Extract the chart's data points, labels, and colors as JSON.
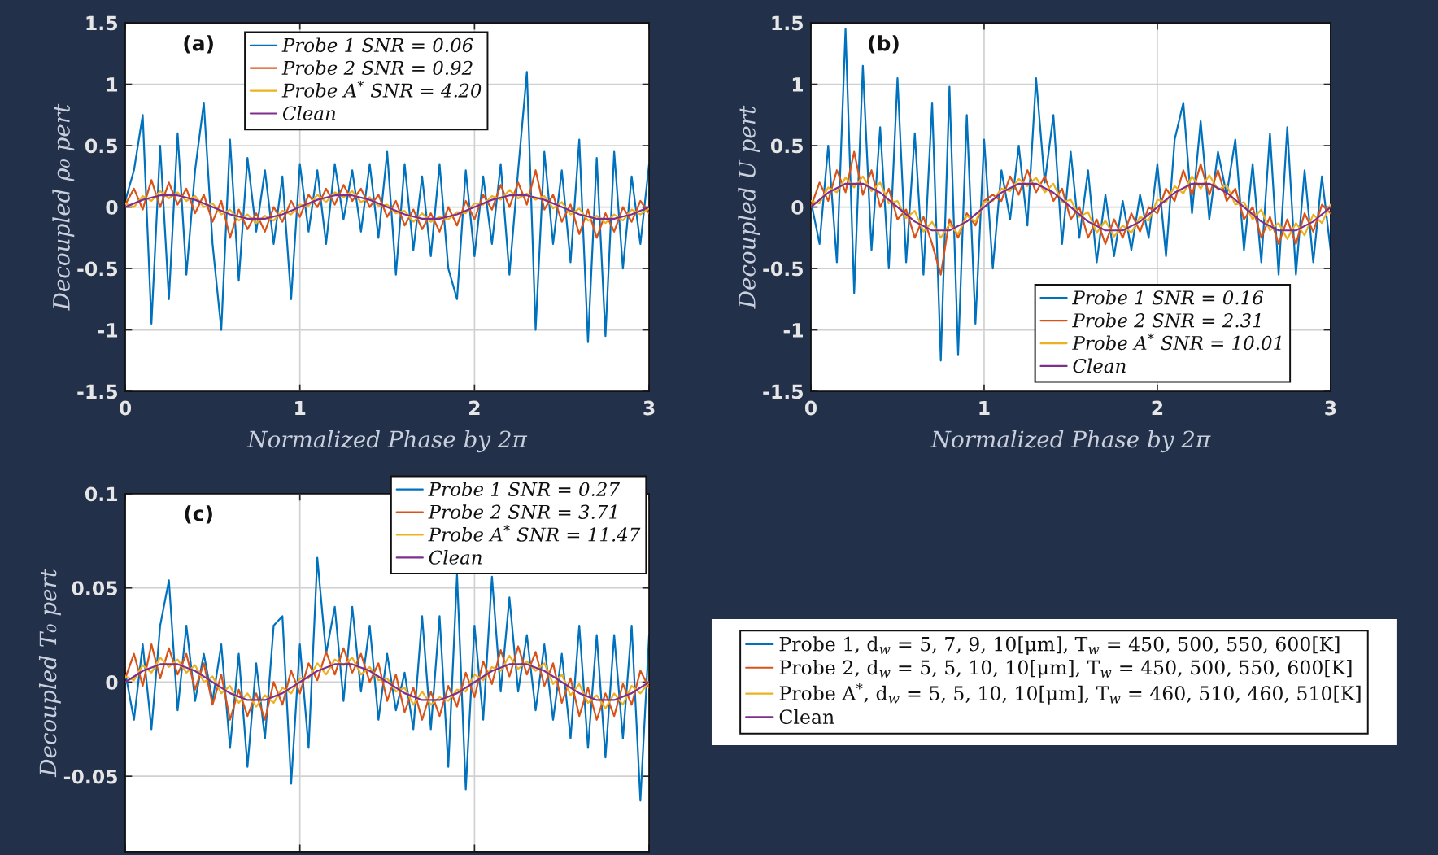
{
  "chart_data": [
    {
      "type": "line",
      "xlabel": "Normalized Phase by 2π",
      "ylabel": "Decoupled ρ₀ pert",
      "annotations": [
        "(a)"
      ],
      "x": [
        0,
        0.05,
        0.1,
        0.15,
        0.2,
        0.25,
        0.3,
        0.35,
        0.4,
        0.45,
        0.5,
        0.55,
        0.6,
        0.65,
        0.7,
        0.75,
        0.8,
        0.85,
        0.9,
        0.95,
        1,
        1.05,
        1.1,
        1.15,
        1.2,
        1.25,
        1.3,
        1.35,
        1.4,
        1.45,
        1.5,
        1.55,
        1.6,
        1.65,
        1.7,
        1.75,
        1.8,
        1.85,
        1.9,
        1.95,
        2,
        2.05,
        2.1,
        2.15,
        2.2,
        2.25,
        2.3,
        2.35,
        2.4,
        2.45,
        2.5,
        2.55,
        2.6,
        2.65,
        2.7,
        2.75,
        2.8,
        2.85,
        2.9,
        2.95,
        3
      ],
      "xlim": [
        0,
        3
      ],
      "xticks": [
        0,
        1,
        2,
        3
      ],
      "ylim": [
        -1.5,
        1.5
      ],
      "yticks": [
        -1.5,
        -1,
        -0.5,
        0,
        0.5,
        1,
        1.5
      ],
      "grid": true,
      "legend": "top",
      "series": [
        {
          "name": "Probe 1 SNR = 0.06",
          "color": "#0072bd",
          "values": [
            0.05,
            0.3,
            0.75,
            -0.95,
            0.5,
            -0.75,
            0.6,
            -0.55,
            0.3,
            0.85,
            -0.3,
            -1.0,
            0.55,
            -0.6,
            0.4,
            -0.2,
            0.3,
            -0.3,
            0.25,
            -0.75,
            0.35,
            -0.2,
            0.3,
            -0.3,
            0.35,
            -0.1,
            0.3,
            -0.2,
            0.35,
            -0.25,
            0.45,
            -0.55,
            0.35,
            -0.35,
            0.25,
            -0.4,
            0.35,
            -0.5,
            -0.75,
            0.3,
            -0.4,
            0.25,
            -0.3,
            0.35,
            -0.55,
            0.3,
            1.1,
            -1.0,
            0.45,
            -0.3,
            0.3,
            -0.45,
            0.55,
            -1.1,
            0.4,
            -1.05,
            0.45,
            -0.5,
            0.25,
            -0.3,
            0.35
          ]
        },
        {
          "name": "Probe 2 SNR = 0.92",
          "color": "#d95319",
          "values": [
            0.02,
            0.15,
            -0.02,
            0.22,
            0.0,
            0.2,
            0.02,
            0.15,
            -0.05,
            0.1,
            -0.12,
            0.05,
            -0.25,
            -0.02,
            -0.18,
            -0.05,
            -0.2,
            0.0,
            -0.12,
            0.05,
            -0.08,
            0.1,
            0.0,
            0.15,
            0.02,
            0.18,
            0.05,
            0.15,
            0.0,
            0.1,
            -0.08,
            0.05,
            -0.15,
            -0.02,
            -0.18,
            -0.05,
            -0.2,
            0.0,
            -0.15,
            0.05,
            -0.1,
            0.1,
            -0.02,
            0.18,
            0.0,
            0.2,
            0.02,
            0.3,
            -0.02,
            0.1,
            -0.12,
            0.02,
            -0.22,
            -0.02,
            -0.25,
            -0.05,
            -0.2,
            0.0,
            -0.12,
            0.05,
            -0.05
          ]
        },
        {
          "name": "Probe A$^{*}$ SNR = 4.20",
          "color": "#edb120",
          "values": [
            0.03,
            0.0,
            0.09,
            0.05,
            0.13,
            0.07,
            0.12,
            0.05,
            0.09,
            0.0,
            0.03,
            -0.06,
            -0.02,
            -0.11,
            -0.06,
            -0.13,
            -0.07,
            -0.11,
            -0.03,
            -0.06,
            0.02,
            0.01,
            0.1,
            0.04,
            0.12,
            0.08,
            0.13,
            0.04,
            0.08,
            0.01,
            0.02,
            -0.05,
            -0.03,
            -0.12,
            -0.05,
            -0.12,
            -0.08,
            -0.1,
            -0.04,
            -0.05,
            0.03,
            0.02,
            0.09,
            0.06,
            0.14,
            0.07,
            0.11,
            0.06,
            0.09,
            -0.01,
            0.04,
            -0.06,
            -0.01,
            -0.11,
            -0.07,
            -0.13,
            -0.06,
            -0.11,
            -0.02,
            -0.06,
            -0.01
          ]
        },
        {
          "name": "Clean",
          "color": "#7e2f8e",
          "x": [
            0,
            0.1,
            0.2,
            0.3,
            0.4,
            0.5,
            0.6,
            0.7,
            0.8,
            0.9,
            1,
            1.1,
            1.2,
            1.3,
            1.4,
            1.5,
            1.6,
            1.7,
            1.8,
            1.9,
            2,
            2.1,
            2.2,
            2.3,
            2.4,
            2.5,
            2.6,
            2.7,
            2.8,
            2.9,
            3
          ],
          "values": [
            0,
            0.059,
            0.095,
            0.095,
            0.059,
            0,
            -0.059,
            -0.095,
            -0.095,
            -0.059,
            0,
            0.059,
            0.095,
            0.095,
            0.059,
            0,
            -0.059,
            -0.095,
            -0.095,
            -0.059,
            0,
            0.059,
            0.095,
            0.095,
            0.059,
            0,
            -0.059,
            -0.095,
            -0.095,
            -0.059,
            0
          ]
        }
      ]
    },
    {
      "type": "line",
      "xlabel": "Normalized Phase by 2π",
      "ylabel": "Decoupled U pert",
      "annotations": [
        "(b)"
      ],
      "x": [
        0,
        0.05,
        0.1,
        0.15,
        0.2,
        0.25,
        0.3,
        0.35,
        0.4,
        0.45,
        0.5,
        0.55,
        0.6,
        0.65,
        0.7,
        0.75,
        0.8,
        0.85,
        0.9,
        0.95,
        1,
        1.05,
        1.1,
        1.15,
        1.2,
        1.25,
        1.3,
        1.35,
        1.4,
        1.45,
        1.5,
        1.55,
        1.6,
        1.65,
        1.7,
        1.75,
        1.8,
        1.85,
        1.9,
        1.95,
        2,
        2.05,
        2.1,
        2.15,
        2.2,
        2.25,
        2.3,
        2.35,
        2.4,
        2.45,
        2.5,
        2.55,
        2.6,
        2.65,
        2.7,
        2.75,
        2.8,
        2.85,
        2.9,
        2.95,
        3
      ],
      "xlim": [
        0,
        3
      ],
      "xticks": [
        0,
        1,
        2,
        3
      ],
      "ylim": [
        -1.5,
        1.5
      ],
      "yticks": [
        -1.5,
        -1,
        -0.5,
        0,
        0.5,
        1,
        1.5
      ],
      "grid": true,
      "legend": "bottom right",
      "series": [
        {
          "name": "Probe 1 SNR = 0.16",
          "color": "#0072bd",
          "values": [
            0.05,
            -0.3,
            0.5,
            -0.45,
            1.45,
            -0.7,
            1.15,
            -0.35,
            0.65,
            -0.5,
            1.05,
            -0.45,
            0.6,
            -0.55,
            0.85,
            -1.25,
            0.98,
            -1.2,
            0.75,
            -0.95,
            0.55,
            -0.5,
            0.3,
            -0.1,
            0.5,
            -0.15,
            1.05,
            0.2,
            0.75,
            -0.3,
            0.45,
            -0.25,
            0.3,
            -0.45,
            0.1,
            -0.4,
            0.05,
            -0.35,
            0.1,
            -0.25,
            0.35,
            -0.4,
            0.55,
            0.85,
            -0.05,
            0.7,
            -0.1,
            0.45,
            0.1,
            0.55,
            -0.35,
            0.35,
            -0.45,
            0.6,
            -0.55,
            0.65,
            -0.55,
            0.3,
            -0.45,
            0.25,
            -0.35
          ]
        },
        {
          "name": "Probe 2 SNR = 2.31",
          "color": "#d95319",
          "values": [
            0.0,
            0.2,
            0.05,
            0.3,
            0.12,
            0.45,
            0.1,
            0.3,
            0.0,
            0.15,
            -0.1,
            -0.02,
            -0.25,
            -0.08,
            -0.3,
            -0.55,
            -0.1,
            -0.25,
            -0.05,
            -0.15,
            0.05,
            0.1,
            0.05,
            0.25,
            0.1,
            0.3,
            0.12,
            0.25,
            0.05,
            0.15,
            -0.1,
            0.0,
            -0.25,
            -0.1,
            -0.3,
            -0.1,
            -0.25,
            -0.05,
            -0.2,
            0.0,
            -0.05,
            0.15,
            0.05,
            0.3,
            0.1,
            0.35,
            0.1,
            0.3,
            0.05,
            0.15,
            -0.1,
            0.0,
            -0.25,
            -0.08,
            -0.3,
            -0.1,
            -0.3,
            -0.05,
            -0.2,
            0.02,
            -0.05
          ]
        },
        {
          "name": "Probe A$^{*}$ SNR = 10.01",
          "color": "#edb120",
          "values": [
            0.05,
            0.03,
            0.16,
            0.12,
            0.24,
            0.16,
            0.25,
            0.13,
            0.2,
            0.03,
            0.05,
            -0.09,
            -0.03,
            -0.2,
            -0.12,
            -0.25,
            -0.14,
            -0.22,
            -0.07,
            -0.12,
            0.04,
            0.05,
            0.15,
            0.13,
            0.23,
            0.17,
            0.24,
            0.12,
            0.19,
            0.04,
            0.06,
            -0.08,
            -0.04,
            -0.21,
            -0.11,
            -0.24,
            -0.15,
            -0.21,
            -0.08,
            -0.11,
            0.06,
            0.04,
            0.17,
            0.11,
            0.25,
            0.15,
            0.26,
            0.14,
            0.18,
            0.02,
            0.04,
            -0.1,
            -0.02,
            -0.19,
            -0.13,
            -0.26,
            -0.13,
            -0.23,
            -0.06,
            -0.13,
            0.02
          ]
        },
        {
          "name": "Clean",
          "color": "#7e2f8e",
          "x": [
            0,
            0.1,
            0.2,
            0.3,
            0.4,
            0.5,
            0.6,
            0.7,
            0.8,
            0.9,
            1,
            1.1,
            1.2,
            1.3,
            1.4,
            1.5,
            1.6,
            1.7,
            1.8,
            1.9,
            2,
            2.1,
            2.2,
            2.3,
            2.4,
            2.5,
            2.6,
            2.7,
            2.8,
            2.9,
            3
          ],
          "values": [
            0,
            0.118,
            0.19,
            0.19,
            0.118,
            0,
            -0.118,
            -0.19,
            -0.19,
            -0.118,
            0,
            0.118,
            0.19,
            0.19,
            0.118,
            0,
            -0.118,
            -0.19,
            -0.19,
            -0.118,
            0,
            0.118,
            0.19,
            0.19,
            0.118,
            0,
            -0.118,
            -0.19,
            -0.19,
            -0.118,
            0
          ]
        }
      ]
    },
    {
      "type": "line",
      "ylabel": "Decoupled T₀ pert",
      "annotations": [
        "(c)"
      ],
      "tick_labels": "y",
      "x": [
        0,
        0.05,
        0.1,
        0.15,
        0.2,
        0.25,
        0.3,
        0.35,
        0.4,
        0.45,
        0.5,
        0.55,
        0.6,
        0.65,
        0.7,
        0.75,
        0.8,
        0.85,
        0.9,
        0.95,
        1,
        1.05,
        1.1,
        1.15,
        1.2,
        1.25,
        1.3,
        1.35,
        1.4,
        1.45,
        1.5,
        1.55,
        1.6,
        1.65,
        1.7,
        1.75,
        1.8,
        1.85,
        1.9,
        1.95,
        2,
        2.05,
        2.1,
        2.15,
        2.2,
        2.25,
        2.3,
        2.35,
        2.4,
        2.45,
        2.5,
        2.55,
        2.6,
        2.65,
        2.7,
        2.75,
        2.8,
        2.85,
        2.9,
        2.95,
        3
      ],
      "xlim": [
        0,
        3
      ],
      "xticks": [
        0,
        1,
        2,
        3
      ],
      "ylim": [
        -0.09,
        0.1
      ],
      "yticks": [
        -0.05,
        0,
        0.05,
        0.1
      ],
      "grid": true,
      "legend": "top right",
      "series": [
        {
          "name": "Probe 1 SNR = 0.27",
          "color": "#0072bd",
          "values": [
            0.005,
            -0.02,
            0.02,
            -0.025,
            0.03,
            0.054,
            -0.015,
            0.03,
            -0.01,
            0.015,
            -0.01,
            0.02,
            -0.035,
            0.015,
            -0.045,
            0.01,
            -0.03,
            0.03,
            0.035,
            -0.054,
            0.02,
            -0.035,
            0.066,
            0.015,
            0.04,
            -0.01,
            0.04,
            -0.005,
            0.03,
            -0.02,
            0.015,
            -0.015,
            0.005,
            -0.025,
            0.035,
            -0.025,
            0.035,
            -0.045,
            0.057,
            -0.057,
            0.03,
            -0.02,
            0.056,
            -0.005,
            0.045,
            -0.005,
            0.025,
            -0.015,
            0.02,
            -0.02,
            0.015,
            -0.03,
            0.03,
            -0.035,
            0.025,
            -0.04,
            0.025,
            -0.03,
            0.03,
            -0.063,
            0.025
          ]
        },
        {
          "name": "Probe 2 SNR = 3.71",
          "color": "#d95319",
          "values": [
            0.002,
            0.015,
            -0.002,
            0.02,
            0.002,
            0.018,
            0.004,
            0.015,
            -0.004,
            0.01,
            -0.012,
            0.004,
            -0.02,
            -0.004,
            -0.018,
            -0.006,
            -0.02,
            0.0,
            -0.012,
            0.006,
            -0.006,
            0.01,
            0.001,
            0.016,
            0.004,
            0.018,
            0.005,
            0.015,
            0.0,
            0.01,
            -0.01,
            0.004,
            -0.016,
            -0.003,
            -0.02,
            -0.005,
            -0.018,
            -0.002,
            -0.013,
            0.005,
            -0.008,
            0.011,
            -0.001,
            0.017,
            0.003,
            0.019,
            0.004,
            0.016,
            -0.002,
            0.01,
            -0.011,
            0.002,
            -0.018,
            -0.003,
            -0.02,
            -0.006,
            -0.018,
            -0.001,
            -0.012,
            0.006,
            -0.003
          ]
        },
        {
          "name": "Probe A$^{*}$ SNR = 11.47",
          "color": "#edb120",
          "values": [
            0.003,
            0.001,
            0.009,
            0.005,
            0.013,
            0.008,
            0.012,
            0.005,
            0.009,
            0.0,
            0.003,
            -0.006,
            -0.002,
            -0.011,
            -0.006,
            -0.013,
            -0.007,
            -0.011,
            -0.003,
            -0.006,
            0.002,
            0.002,
            0.01,
            0.004,
            0.012,
            0.009,
            0.013,
            0.004,
            0.008,
            0.001,
            0.002,
            -0.005,
            -0.003,
            -0.012,
            -0.005,
            -0.012,
            -0.008,
            -0.01,
            -0.004,
            -0.005,
            0.004,
            0.001,
            0.008,
            0.006,
            0.014,
            0.007,
            0.011,
            0.006,
            0.01,
            -0.001,
            0.004,
            -0.007,
            -0.001,
            -0.011,
            -0.007,
            -0.014,
            -0.006,
            -0.012,
            -0.002,
            -0.006,
            0.0
          ]
        },
        {
          "name": "Clean",
          "color": "#7e2f8e",
          "x": [
            0,
            0.1,
            0.2,
            0.3,
            0.4,
            0.5,
            0.6,
            0.7,
            0.8,
            0.9,
            1,
            1.1,
            1.2,
            1.3,
            1.4,
            1.5,
            1.6,
            1.7,
            1.8,
            1.9,
            2,
            2.1,
            2.2,
            2.3,
            2.4,
            2.5,
            2.6,
            2.7,
            2.8,
            2.9,
            3
          ],
          "values": [
            0,
            0.0059,
            0.0095,
            0.0095,
            0.0059,
            0,
            -0.0059,
            -0.0095,
            -0.0095,
            -0.0059,
            0,
            0.0059,
            0.0095,
            0.0095,
            0.0059,
            0,
            -0.0059,
            -0.0095,
            -0.0095,
            -0.0059,
            0,
            0.0059,
            0.0095,
            0.0095,
            0.0059,
            0,
            -0.0059,
            -0.0095,
            -0.0095,
            -0.0059,
            0
          ]
        }
      ]
    },
    {
      "type": "other",
      "legend": "center",
      "series": [
        {
          "name": "Probe 1, d$_{w}$ = 5, 7, 9, 10[μm], T$_{w}$ = 450, 500, 550, 600[K]",
          "color": "#0072bd"
        },
        {
          "name": "Probe 2, d$_{w}$ = 5, 5, 10, 10[μm], T$_{w}$ = 450, 500, 550, 600[K]",
          "color": "#d95319"
        },
        {
          "name": "Probe A$^{*}$, d$_{w}$ = 5, 5, 10, 10[μm], T$_{w}$ = 460, 510, 460, 510[K]",
          "color": "#edb120"
        },
        {
          "name": "Clean",
          "color": "#7e2f8e"
        }
      ]
    }
  ]
}
